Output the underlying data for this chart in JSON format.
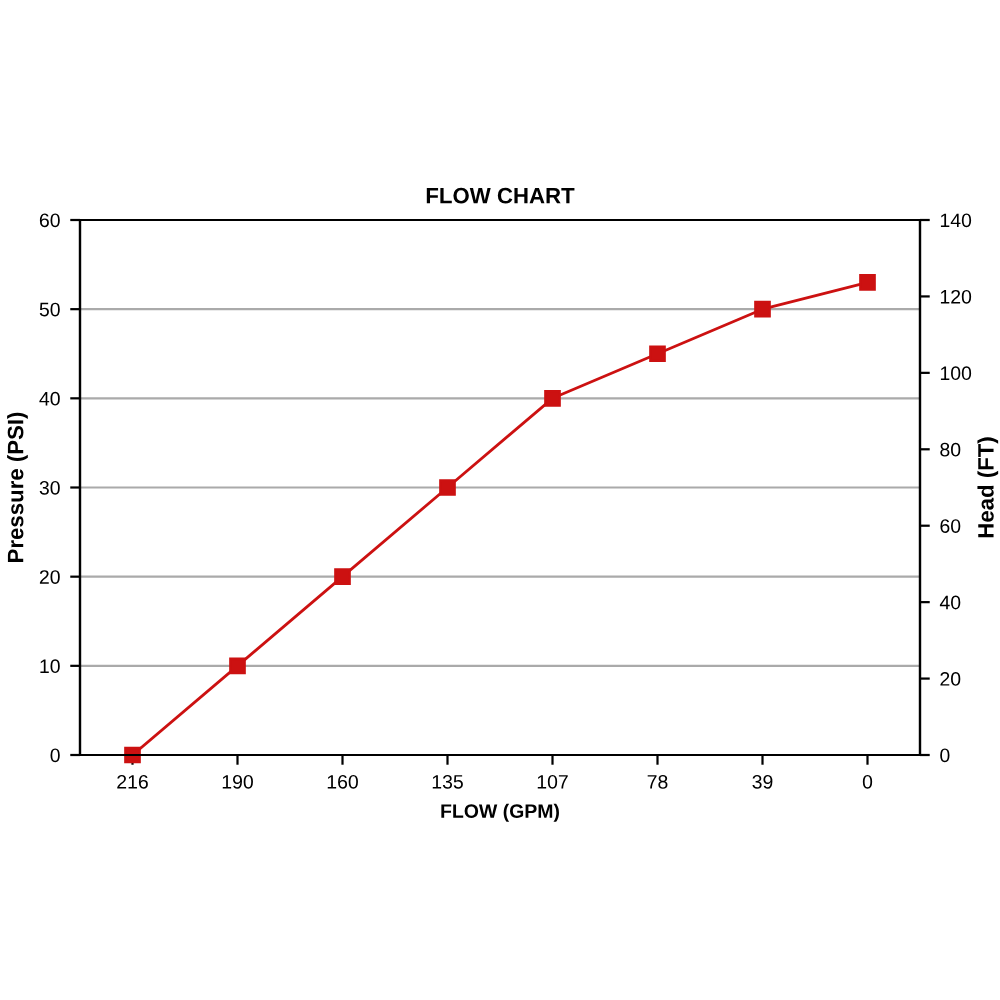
{
  "chart_data": {
    "type": "line",
    "title": "FLOW CHART",
    "xlabel": "FLOW (GPM)",
    "ylabel": "Pressure (PSI)",
    "y2label": "Head (FT)",
    "categories": [
      "216",
      "190",
      "160",
      "135",
      "107",
      "78",
      "39",
      "0"
    ],
    "series": [
      {
        "color": "#cc1111",
        "values": [
          0,
          10,
          20,
          30,
          40,
          45,
          50,
          53
        ]
      }
    ],
    "ylim": [
      0,
      60
    ],
    "yticks": [
      0,
      10,
      20,
      30,
      40,
      50,
      60
    ],
    "y2lim": [
      0,
      140
    ],
    "y2ticks": [
      0,
      20,
      40,
      60,
      80,
      100,
      120,
      140
    ],
    "grid": "y",
    "marker": "square",
    "line_style": "solid",
    "legend": false
  }
}
